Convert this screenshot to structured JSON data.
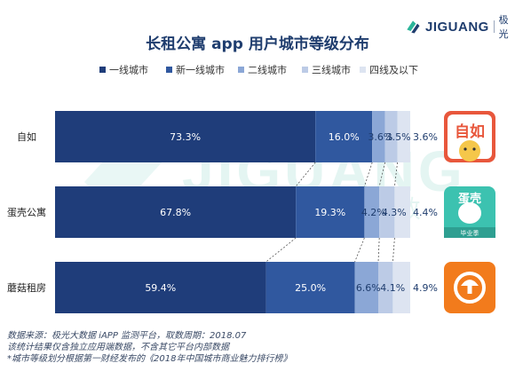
{
  "brand": {
    "name": "JIGUANG",
    "name_cn": "极光",
    "watermark": "JIGUANG",
    "watermark_cn": "极 光 大 数"
  },
  "chart_data": {
    "type": "bar",
    "orientation": "horizontal",
    "stacked": true,
    "normalized": true,
    "title": "长租公寓 app 用户城市等级分布",
    "legend_position": "top",
    "categories": [
      "自如",
      "蛋壳公寓",
      "蘑菇租房"
    ],
    "series": [
      {
        "name": "一线城市",
        "color": "#1f3d7a",
        "values": [
          73.3,
          67.8,
          59.4
        ],
        "labels": [
          "73.3%",
          "67.8%",
          "59.4%"
        ]
      },
      {
        "name": "新一线城市",
        "color": "#30589f",
        "values": [
          16.0,
          19.3,
          25.0
        ],
        "labels": [
          "16.0%",
          "19.3%",
          "25.0%"
        ]
      },
      {
        "name": "二线城市",
        "color": "#8ba7d6",
        "values": [
          3.6,
          4.2,
          6.6
        ],
        "labels": [
          "3.6%",
          "4.2%",
          "6.6%"
        ]
      },
      {
        "name": "三线城市",
        "color": "#bccbe6",
        "values": [
          3.5,
          4.3,
          4.1
        ],
        "labels": [
          "3.5%",
          "4.3%",
          "4.1%"
        ]
      },
      {
        "name": "四线及以下",
        "color": "#dde4f1",
        "values": [
          3.6,
          4.4,
          4.9
        ],
        "labels": [
          "3.6%",
          "4.4%",
          "4.9%"
        ]
      }
    ],
    "app_icons": [
      {
        "name": "ziroom-app-icon",
        "text": "自如"
      },
      {
        "name": "danke-app-icon",
        "text": "蛋壳",
        "subtext": "毕业季"
      },
      {
        "name": "mogu-app-icon"
      }
    ]
  },
  "footer": {
    "lines": [
      "数据来源：极光大数据 iAPP 监测平台，取数周期：2018.07",
      "该统计结果仅含独立应用端数据，不含其它平台内部数据",
      "*城市等级划分根据第一财经发布的《2018年中国城市商业魅力排行榜》"
    ]
  }
}
